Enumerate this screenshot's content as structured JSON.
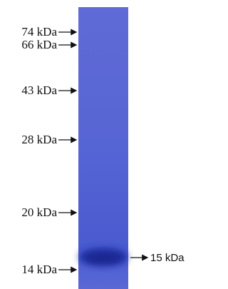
{
  "markers": [
    "74 kDa",
    "66 kDa",
    "43 kDa",
    "28 kDa",
    "20 kDa",
    "14 kDa"
  ],
  "band": {
    "label": "15 kDa"
  }
}
